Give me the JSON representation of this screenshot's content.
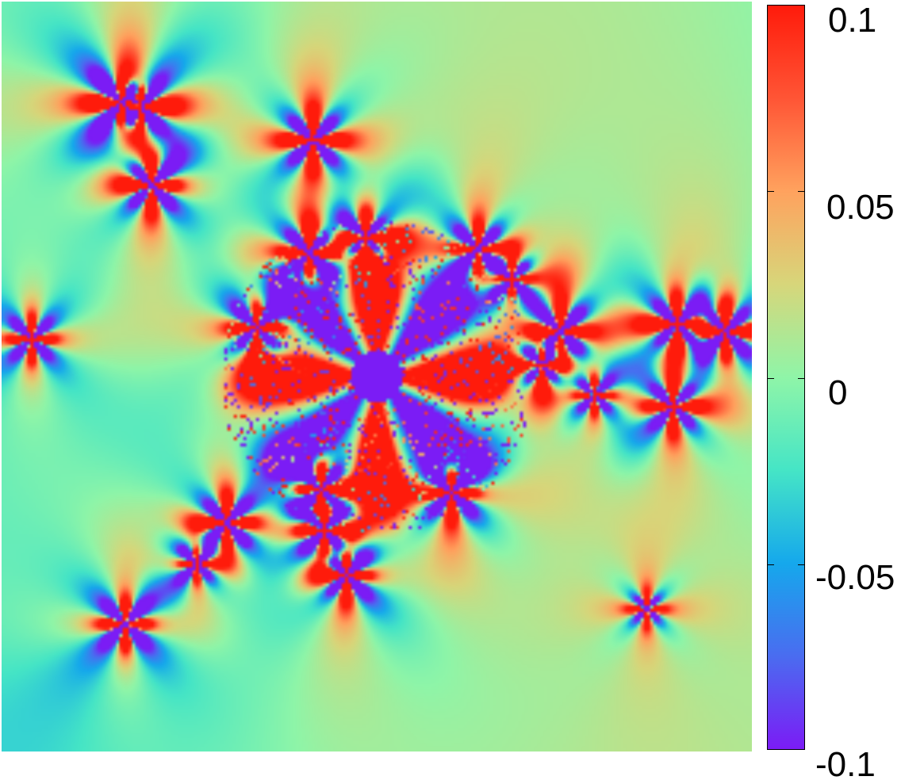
{
  "chart_data": {
    "type": "heatmap",
    "title": "",
    "xlabel": "",
    "ylabel": "",
    "colorbar": {
      "range": [
        -0.1,
        0.1
      ],
      "ticks": [
        {
          "value": 0.1,
          "label": "0.1"
        },
        {
          "value": 0.05,
          "label": "0.05"
        },
        {
          "value": 0,
          "label": "0"
        },
        {
          "value": -0.05,
          "label": "-0.05"
        },
        {
          "value": -0.1,
          "label": "-0.1"
        }
      ],
      "colormap": [
        "#7b1cf5",
        "#4a6cf0",
        "#15a8ec",
        "#45e5c6",
        "#8ff5a8",
        "#d7d67a",
        "#ffa25e",
        "#ff5535",
        "#ff1b0b"
      ]
    },
    "field": {
      "background_value": 0.0,
      "central_disk": {
        "x": 0.0,
        "y": 0.0,
        "value": -0.1
      },
      "lobes": [
        {
          "angle_deg": 90,
          "sign": 1
        },
        {
          "angle_deg": 270,
          "sign": 1
        },
        {
          "angle_deg": 0,
          "sign": 1
        },
        {
          "angle_deg": 180,
          "sign": 1
        },
        {
          "angle_deg": 45,
          "sign": -1
        },
        {
          "angle_deg": 135,
          "sign": -1
        },
        {
          "angle_deg": 225,
          "sign": -1
        },
        {
          "angle_deg": 315,
          "sign": -1
        }
      ],
      "singular_points": [
        {
          "x": -0.68,
          "y": 0.73,
          "strength": 1.2
        },
        {
          "x": -0.63,
          "y": 0.72,
          "strength": 1.0
        },
        {
          "x": -0.17,
          "y": 0.63,
          "strength": 1.0
        },
        {
          "x": -0.6,
          "y": 0.51,
          "strength": 0.9
        },
        {
          "x": -0.18,
          "y": 0.33,
          "strength": 1.0
        },
        {
          "x": -0.03,
          "y": 0.37,
          "strength": 0.8
        },
        {
          "x": 0.27,
          "y": 0.34,
          "strength": 0.8
        },
        {
          "x": 0.36,
          "y": 0.26,
          "strength": 0.5
        },
        {
          "x": -0.32,
          "y": 0.13,
          "strength": 0.8
        },
        {
          "x": -0.92,
          "y": 0.1,
          "strength": 0.6
        },
        {
          "x": 0.49,
          "y": 0.12,
          "strength": 1.0
        },
        {
          "x": 0.8,
          "y": 0.14,
          "strength": 1.0
        },
        {
          "x": 0.93,
          "y": 0.12,
          "strength": 1.0
        },
        {
          "x": 0.44,
          "y": 0.03,
          "strength": 0.6
        },
        {
          "x": 0.79,
          "y": -0.08,
          "strength": 0.8
        },
        {
          "x": 0.58,
          "y": -0.05,
          "strength": 0.4
        },
        {
          "x": -0.15,
          "y": -0.3,
          "strength": 1.0
        },
        {
          "x": 0.2,
          "y": -0.31,
          "strength": 0.9
        },
        {
          "x": -0.4,
          "y": -0.39,
          "strength": 0.9
        },
        {
          "x": -0.14,
          "y": -0.41,
          "strength": 1.0
        },
        {
          "x": -0.08,
          "y": -0.53,
          "strength": 0.8
        },
        {
          "x": -0.67,
          "y": -0.66,
          "strength": 0.8
        },
        {
          "x": -0.48,
          "y": -0.5,
          "strength": 0.4
        },
        {
          "x": 0.72,
          "y": -0.62,
          "strength": 0.3
        }
      ]
    }
  }
}
